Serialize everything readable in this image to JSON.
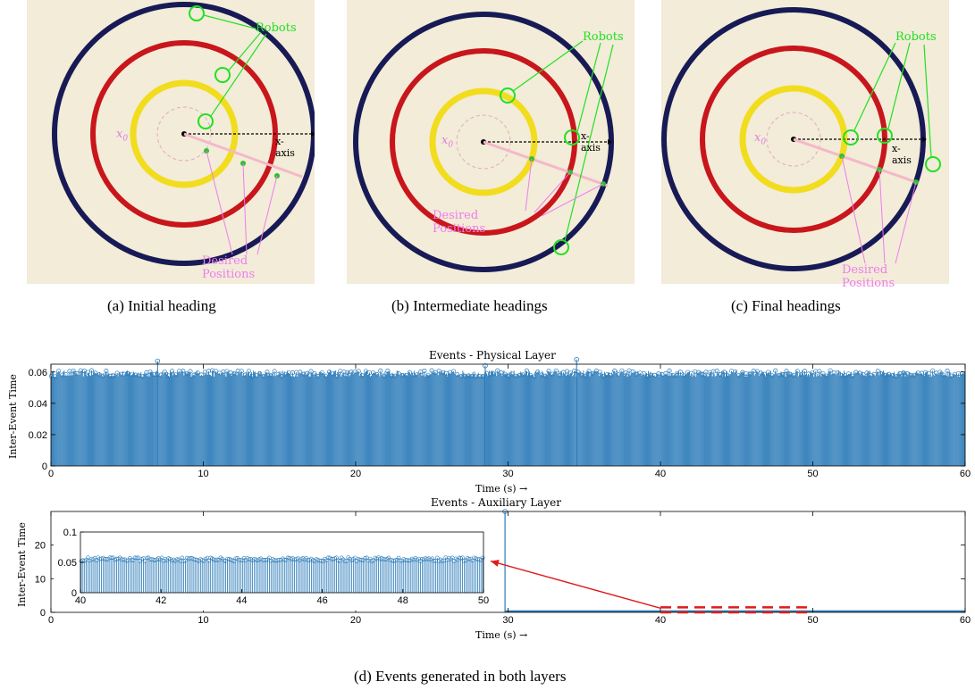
{
  "figure": {
    "panels": [
      {
        "id": "a",
        "caption": "(a)  Initial heading",
        "robots_label": "Robots",
        "desired_label": "Desired Positions",
        "xaxis_label": "x-axis",
        "x0_label": "x",
        "x0_sub": "0"
      },
      {
        "id": "b",
        "caption": "(b)  Intermediate headings",
        "robots_label": "Robots",
        "desired_label": "Desired Positions",
        "xaxis_label": "x-axis",
        "x0_label": "x",
        "x0_sub": "0"
      },
      {
        "id": "c",
        "caption": "(c)  Final headings",
        "robots_label": "Robots",
        "desired_label": "Desired Positions",
        "xaxis_label": "x-axis",
        "x0_label": "x",
        "x0_sub": "0"
      }
    ],
    "caption_d": "(d)  Events generated in both layers",
    "colors": {
      "outer_ring": "#171a55",
      "middle_ring": "#c8161c",
      "inner_ring": "#f2dc1e",
      "robots_label": "#22e022",
      "desired_label": "#f07cf0",
      "background": "#f2ecd8",
      "stem": "#2a7ab8",
      "arrow": "#e01b1b"
    }
  },
  "chart_data": [
    {
      "type": "bar",
      "title": "Events - Physical Layer",
      "xlabel": "Time (s) →",
      "ylabel": "Inter-Event Time",
      "xlim": [
        0,
        60
      ],
      "ylim": [
        0,
        0.065
      ],
      "xticks": [
        0,
        10,
        20,
        30,
        40,
        50,
        60
      ],
      "yticks": [
        0,
        0.02,
        0.04,
        0.06
      ],
      "ytick_labels": [
        "0",
        "0.02",
        "0.04",
        "0.06"
      ],
      "series": [
        {
          "typical_value": 0.06,
          "range": [
            0.057,
            0.061
          ],
          "occasional_peaks": [
            [
              7,
              0.067
            ],
            [
              28.5,
              0.064
            ],
            [
              34.5,
              0.068
            ]
          ]
        }
      ]
    },
    {
      "type": "bar",
      "title": "Events - Auxiliary Layer",
      "xlabel": "Time (s) →",
      "ylabel": "Inter-Event Time",
      "xlim": [
        0,
        60
      ],
      "ylim": [
        0,
        30
      ],
      "xticks": [
        0,
        10,
        20,
        30,
        40,
        50,
        60
      ],
      "yticks": [
        0,
        10,
        20
      ],
      "spike": {
        "x": 29.8,
        "y": 30
      },
      "baseline_value": 0.06,
      "inset": {
        "xlim": [
          40,
          50
        ],
        "ylim": [
          0,
          0.1
        ],
        "xticks": [
          40,
          42,
          44,
          46,
          48,
          50
        ],
        "yticks": [
          0,
          0.05,
          0.1
        ],
        "ytick_labels": [
          "0",
          "0.05",
          "0.1"
        ],
        "typical_value": 0.055,
        "range": [
          0.052,
          0.058
        ]
      },
      "highlight_box": {
        "x": [
          40,
          50
        ],
        "y": [
          0,
          1.5
        ]
      }
    }
  ]
}
